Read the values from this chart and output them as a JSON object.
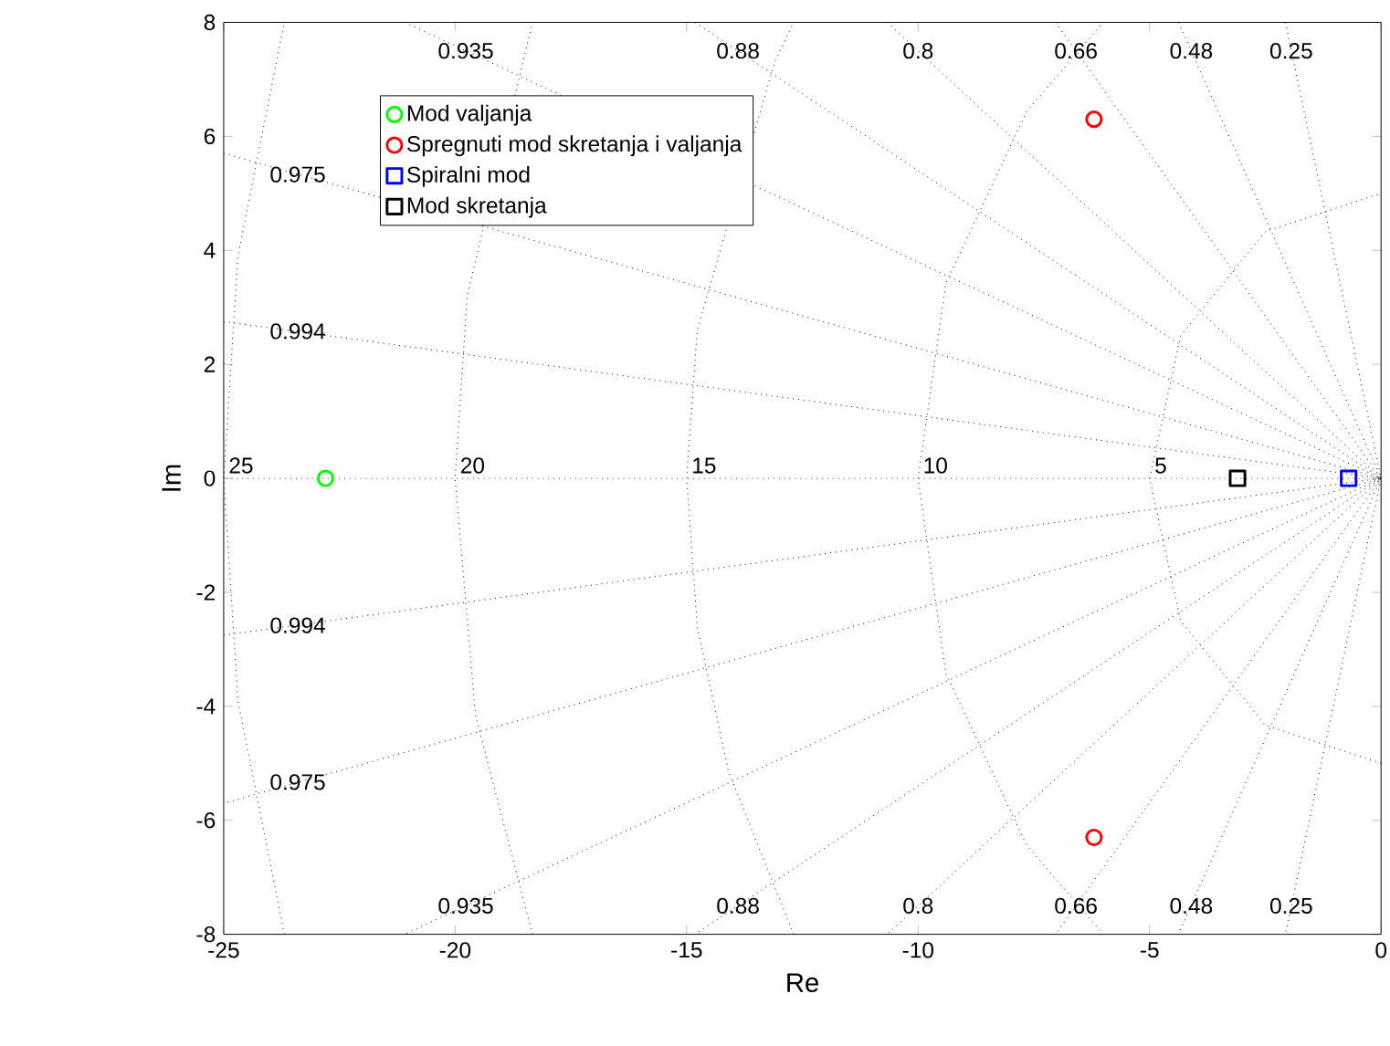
{
  "chart_data": {
    "type": "scatter",
    "xlabel": "Re",
    "ylabel": "Im",
    "xlim": [
      -25,
      0
    ],
    "ylim": [
      -8,
      8
    ],
    "xticks": [
      -25,
      -20,
      -15,
      -10,
      -5,
      0
    ],
    "yticks": [
      -8,
      -6,
      -4,
      -2,
      0,
      2,
      4,
      6,
      8
    ],
    "grid": false,
    "legend": "top left",
    "series": [
      {
        "type": "line",
        "color": "#000000",
        "line_style": "dotted",
        "marker": "none",
        "x": [
          -2.066,
          0,
          -2.066
        ],
        "values": [
          8,
          0,
          -8
        ]
      },
      {
        "type": "line",
        "color": "#000000",
        "line_style": "dotted",
        "marker": "none",
        "x": [
          -4.377,
          0,
          -4.377
        ],
        "values": [
          8,
          0,
          -8
        ]
      },
      {
        "type": "line",
        "color": "#000000",
        "line_style": "dotted",
        "marker": "none",
        "x": [
          -7.03,
          0,
          -7.03
        ],
        "values": [
          8,
          0,
          -8
        ]
      },
      {
        "type": "line",
        "color": "#000000",
        "line_style": "dotted",
        "marker": "none",
        "x": [
          -10.667,
          0,
          -10.667
        ],
        "values": [
          8,
          0,
          -8
        ]
      },
      {
        "type": "line",
        "color": "#000000",
        "line_style": "dotted",
        "marker": "none",
        "x": [
          -14.82,
          0,
          -14.82
        ],
        "values": [
          8,
          0,
          -8
        ]
      },
      {
        "type": "line",
        "color": "#000000",
        "line_style": "dotted",
        "marker": "none",
        "x": [
          -21.09,
          0,
          -21.09
        ],
        "values": [
          8,
          0,
          -8
        ]
      },
      {
        "type": "line",
        "color": "#000000",
        "line_style": "dotted",
        "marker": "none",
        "x": [
          -25,
          0,
          -25
        ],
        "values": [
          5.7,
          0,
          -5.7
        ]
      },
      {
        "type": "line",
        "color": "#000000",
        "line_style": "dotted",
        "marker": "none",
        "x": [
          -25,
          0,
          -25
        ],
        "values": [
          2.75,
          0,
          -2.75
        ]
      },
      {
        "type": "line",
        "color": "#000000",
        "line_style": "dotted",
        "marker": "none",
        "x": [
          0,
          -25
        ],
        "values": [
          0,
          0
        ]
      },
      {
        "type": "line",
        "color": "#000000",
        "line_style": "dotted",
        "marker": "none",
        "x": [
          0,
          -2.5,
          -4.33,
          -5,
          -4.33,
          -2.5,
          0
        ],
        "values": [
          -5,
          -4.33,
          -2.5,
          0,
          2.5,
          4.33,
          5
        ]
      },
      {
        "type": "line",
        "color": "#000000",
        "line_style": "dotted",
        "marker": "none",
        "x": [
          -6,
          -7.66,
          -9.4,
          -10,
          -9.4,
          -7.66,
          -6
        ],
        "values": [
          -8,
          -6.43,
          -3.42,
          0,
          3.42,
          6.43,
          8
        ]
      },
      {
        "type": "line",
        "color": "#000000",
        "line_style": "dotted",
        "marker": "none",
        "x": [
          -12.69,
          -14.1,
          -14.77,
          -15,
          -14.77,
          -13.1,
          -12.69
        ],
        "values": [
          -8,
          -5.13,
          -2.6,
          0,
          2.6,
          7.3,
          8
        ]
      },
      {
        "type": "line",
        "color": "#000000",
        "line_style": "dotted",
        "marker": "none",
        "x": [
          -18.33,
          -19.56,
          -20,
          -19.74,
          -18.33
        ],
        "values": [
          -8,
          -4.16,
          0,
          3.2,
          8
        ]
      },
      {
        "type": "line",
        "color": "#000000",
        "line_style": "dotted",
        "marker": "none",
        "x": [
          -23.69,
          -24.69,
          -25,
          -24.69,
          -23.69
        ],
        "values": [
          -8,
          -3.91,
          0,
          3.91,
          8
        ]
      },
      {
        "name": "Mod valjanja",
        "color": "#00ff00",
        "marker": "circle",
        "x": [
          -22.8
        ],
        "values": [
          0
        ]
      },
      {
        "name": "Spregnuti mod skretanja i valjanja",
        "color": "#ff0000",
        "marker": "circle",
        "x": [
          -6.2,
          -6.2
        ],
        "values": [
          6.3,
          -6.3
        ]
      },
      {
        "name": "Spiralni mod",
        "color": "#0000ff",
        "marker": "square",
        "x": [
          -0.7
        ],
        "values": [
          0
        ]
      },
      {
        "name": "Mod skretanja",
        "color": "#000000",
        "marker": "square",
        "x": [
          -3.1
        ],
        "values": [
          0
        ]
      }
    ],
    "annotations": [
      {
        "text": "0.935",
        "x": -19.77,
        "y": 7.5
      },
      {
        "text": "0.88",
        "x": -13.89,
        "y": 7.5
      },
      {
        "text": "0.8",
        "x": -10,
        "y": 7.5
      },
      {
        "text": "0.66",
        "x": -6.59,
        "y": 7.5
      },
      {
        "text": "0.48",
        "x": -4.1,
        "y": 7.5
      },
      {
        "text": "0.25",
        "x": -1.94,
        "y": 7.5
      },
      {
        "text": "0.975",
        "x": -23.4,
        "y": 5.33
      },
      {
        "text": "0.994",
        "x": -23.4,
        "y": 2.58
      },
      {
        "text": "0.994",
        "x": -23.4,
        "y": -2.58
      },
      {
        "text": "0.975",
        "x": -23.4,
        "y": -5.33
      },
      {
        "text": "0.935",
        "x": -19.77,
        "y": -7.5
      },
      {
        "text": "0.88",
        "x": -13.89,
        "y": -7.5
      },
      {
        "text": "0.8",
        "x": -10,
        "y": -7.5
      },
      {
        "text": "0.66",
        "x": -6.59,
        "y": -7.5
      },
      {
        "text": "0.48",
        "x": -4.1,
        "y": -7.5
      },
      {
        "text": "0.25",
        "x": -1.94,
        "y": -7.5
      },
      {
        "text": "25",
        "x": -25,
        "y": 0
      },
      {
        "text": "20",
        "x": -20,
        "y": 0
      },
      {
        "text": "15",
        "x": -15,
        "y": 0
      },
      {
        "text": "10",
        "x": -10,
        "y": 0
      },
      {
        "text": "5",
        "x": -5,
        "y": 0
      }
    ]
  }
}
